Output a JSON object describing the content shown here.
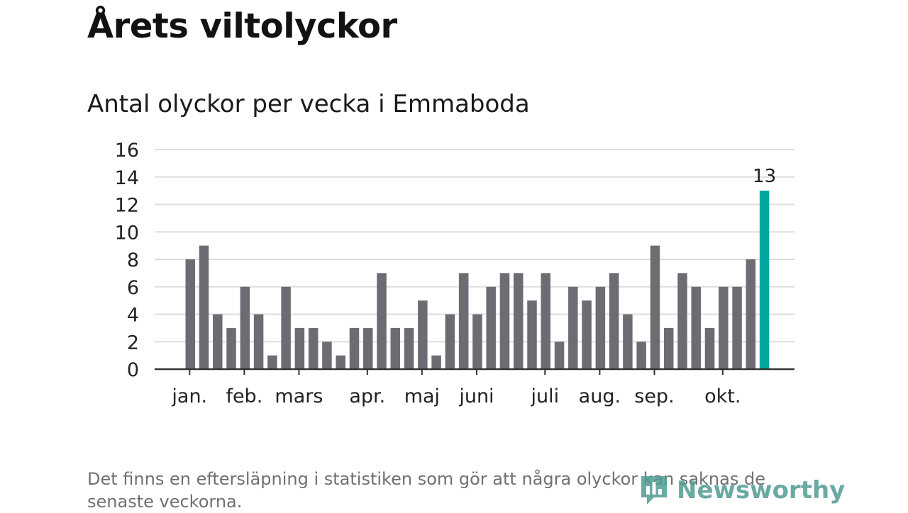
{
  "header": {
    "title": "Årets viltolyckor",
    "subtitle": "Antal olyckor per vecka i Emmaboda"
  },
  "chart_data": {
    "type": "bar",
    "title": "Antal olyckor per vecka i Emmaboda",
    "xlabel": "",
    "ylabel": "",
    "ylim": [
      0,
      16
    ],
    "yticks": [
      0,
      2,
      4,
      6,
      8,
      10,
      12,
      14,
      16
    ],
    "grid": true,
    "values": [
      8,
      9,
      4,
      3,
      6,
      4,
      1,
      6,
      3,
      3,
      2,
      1,
      3,
      3,
      7,
      3,
      3,
      5,
      1,
      4,
      7,
      4,
      6,
      7,
      7,
      5,
      7,
      2,
      6,
      5,
      6,
      7,
      4,
      2,
      9,
      3,
      7,
      6,
      3,
      6,
      6,
      8,
      13
    ],
    "highlight_index": 42,
    "highlight_label": "13",
    "month_labels": [
      {
        "label": "jan.",
        "week": 0.3
      },
      {
        "label": "feb.",
        "week": 4.3
      },
      {
        "label": "mars",
        "week": 8.3
      },
      {
        "label": "apr.",
        "week": 13.3
      },
      {
        "label": "maj",
        "week": 17.3
      },
      {
        "label": "juni",
        "week": 21.3
      },
      {
        "label": "juli",
        "week": 26.3
      },
      {
        "label": "aug.",
        "week": 30.3
      },
      {
        "label": "sep.",
        "week": 34.3
      },
      {
        "label": "okt.",
        "week": 39.3
      }
    ],
    "colors": {
      "bar": "#6e6c72",
      "highlight": "#00a79d",
      "grid": "#dedede",
      "axis": "#333333",
      "text": "#222222"
    }
  },
  "footer": {
    "note": "Det finns en eftersläpning i statistiken som gör att några olyckor kan saknas de senaste veckorna.",
    "brand": "Newsworthy",
    "brand_color": "#4f9c93"
  }
}
